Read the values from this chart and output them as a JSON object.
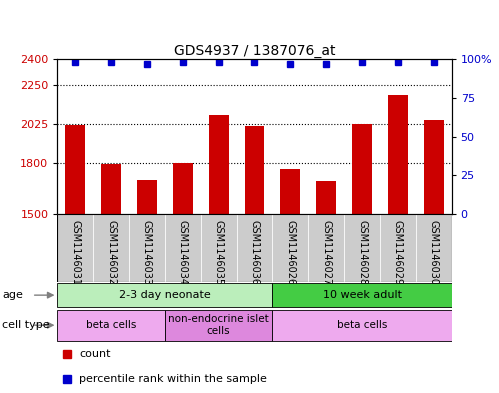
{
  "title": "GDS4937 / 1387076_at",
  "samples": [
    "GSM1146031",
    "GSM1146032",
    "GSM1146033",
    "GSM1146034",
    "GSM1146035",
    "GSM1146036",
    "GSM1146026",
    "GSM1146027",
    "GSM1146028",
    "GSM1146029",
    "GSM1146030"
  ],
  "counts": [
    2020,
    1790,
    1700,
    1795,
    2075,
    2015,
    1760,
    1690,
    2025,
    2190,
    2050
  ],
  "percentile_ranks": [
    98,
    98,
    97,
    98,
    98,
    98,
    97,
    97,
    98,
    98,
    98
  ],
  "ymin": 1500,
  "ymax": 2400,
  "yticks_left": [
    1500,
    1800,
    2025,
    2250,
    2400
  ],
  "yticks_right": [
    0,
    25,
    50,
    75,
    100
  ],
  "bar_color": "#cc0000",
  "dot_color": "#0000cc",
  "age_groups": [
    {
      "label": "2-3 day neonate",
      "start": 0,
      "end": 6,
      "color": "#bbeebb"
    },
    {
      "label": "10 week adult",
      "start": 6,
      "end": 11,
      "color": "#44cc44"
    }
  ],
  "cell_type_groups": [
    {
      "label": "beta cells",
      "start": 0,
      "end": 3,
      "color": "#eeaaee"
    },
    {
      "label": "non-endocrine islet\ncells",
      "start": 3,
      "end": 6,
      "color": "#dd88dd"
    },
    {
      "label": "beta cells",
      "start": 6,
      "end": 11,
      "color": "#eeaaee"
    }
  ],
  "age_label": "age",
  "cell_type_label": "cell type",
  "legend_count_label": "count",
  "legend_percentile_label": "percentile rank within the sample",
  "background_color": "#ffffff",
  "sample_area_color": "#cccccc"
}
